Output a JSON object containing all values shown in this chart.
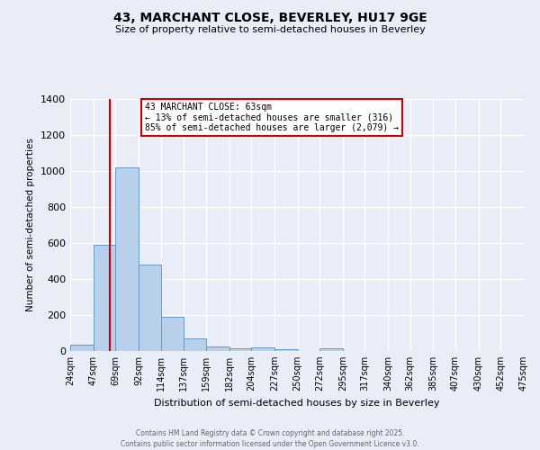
{
  "title_line1": "43, MARCHANT CLOSE, BEVERLEY, HU17 9GE",
  "title_line2": "Size of property relative to semi-detached houses in Beverley",
  "xlabel": "Distribution of semi-detached houses by size in Beverley",
  "ylabel": "Number of semi-detached properties",
  "bin_edges": [
    24,
    47,
    69,
    92,
    114,
    137,
    159,
    182,
    204,
    227,
    250,
    272,
    295,
    317,
    340,
    362,
    385,
    407,
    430,
    452,
    475
  ],
  "bar_heights": [
    35,
    590,
    1020,
    480,
    190,
    70,
    25,
    15,
    20,
    10,
    0,
    15,
    0,
    0,
    0,
    0,
    0,
    0,
    0,
    0
  ],
  "bar_color": "#b8d0ea",
  "bar_edge_color": "#6699cc",
  "property_size": 63,
  "red_line_color": "#cc0000",
  "annotation_line1": "43 MARCHANT CLOSE: 63sqm",
  "annotation_line2": "← 13% of semi-detached houses are smaller (316)",
  "annotation_line3": "85% of semi-detached houses are larger (2,079) →",
  "annotation_box_color": "#ffffff",
  "annotation_box_edge_color": "#cc0000",
  "ylim": [
    0,
    1400
  ],
  "yticks": [
    0,
    200,
    400,
    600,
    800,
    1000,
    1200,
    1400
  ],
  "background_color": "#e8edf8",
  "grid_color": "#ffffff",
  "footer_line1": "Contains HM Land Registry data © Crown copyright and database right 2025.",
  "footer_line2": "Contains public sector information licensed under the Open Government Licence v3.0."
}
